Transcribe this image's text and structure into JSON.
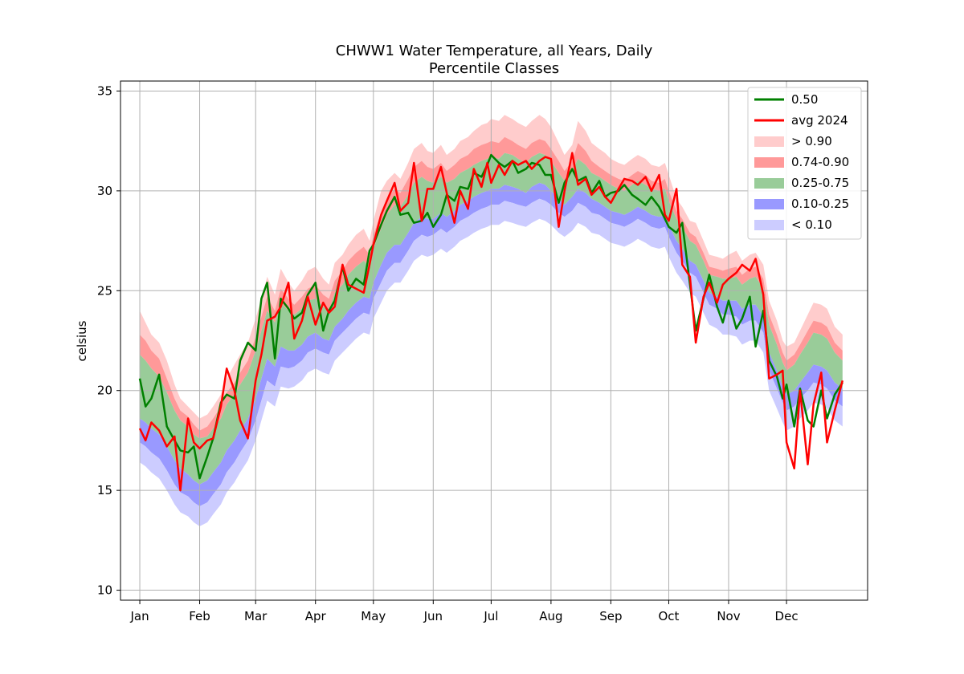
{
  "chart_data": {
    "type": "area",
    "title": "CHWW1 Water Temperature, all Years, Daily",
    "subtitle": "Percentile Classes",
    "xlabel": "",
    "ylabel": "celsius",
    "ylim": [
      9.5,
      35.5
    ],
    "xlim": [
      -10,
      377
    ],
    "grid": true,
    "legend_position": "top-right",
    "x_ticks": [
      {
        "day": 0,
        "label": "Jan"
      },
      {
        "day": 31,
        "label": "Feb"
      },
      {
        "day": 60,
        "label": "Mar"
      },
      {
        "day": 91,
        "label": "Apr"
      },
      {
        "day": 121,
        "label": "May"
      },
      {
        "day": 152,
        "label": "Jun"
      },
      {
        "day": 182,
        "label": "Jul"
      },
      {
        "day": 213,
        "label": "Aug"
      },
      {
        "day": 244,
        "label": "Sep"
      },
      {
        "day": 274,
        "label": "Oct"
      },
      {
        "day": 305,
        "label": "Nov"
      },
      {
        "day": 335,
        "label": "Dec"
      }
    ],
    "y_ticks": [
      10,
      15,
      20,
      25,
      30,
      35
    ],
    "legend": [
      {
        "label": "0.50",
        "kind": "line",
        "color": "#008000"
      },
      {
        "label": "avg 2024",
        "kind": "line",
        "color": "#ff0000"
      },
      {
        "label": "> 0.90",
        "kind": "band",
        "color": "#ffcccc"
      },
      {
        "label": "0.74-0.90",
        "kind": "band",
        "color": "#ff9999"
      },
      {
        "label": "0.25-0.75",
        "kind": "band",
        "color": "#99cc99"
      },
      {
        "label": "0.10-0.25",
        "kind": "band",
        "color": "#9999ff"
      },
      {
        "label": "< 0.10",
        "kind": "band",
        "color": "#ccccff"
      }
    ],
    "x": [
      0,
      3,
      6,
      10,
      14,
      18,
      21,
      25,
      28,
      31,
      35,
      38,
      42,
      45,
      49,
      52,
      56,
      60,
      63,
      66,
      70,
      73,
      77,
      80,
      84,
      87,
      91,
      95,
      98,
      101,
      105,
      108,
      112,
      116,
      119,
      121,
      125,
      128,
      132,
      135,
      139,
      142,
      146,
      149,
      152,
      156,
      159,
      163,
      166,
      170,
      173,
      177,
      180,
      182,
      186,
      189,
      193,
      196,
      200,
      203,
      207,
      210,
      213,
      217,
      220,
      224,
      227,
      231,
      234,
      238,
      241,
      244,
      248,
      251,
      255,
      258,
      262,
      265,
      269,
      272,
      274,
      278,
      281,
      285,
      288,
      292,
      295,
      299,
      302,
      305,
      309,
      312,
      316,
      319,
      323,
      326,
      330,
      333,
      335,
      339,
      342,
      346,
      349,
      353,
      356,
      360,
      364
    ],
    "series": [
      {
        "name": "> 0.90",
        "values": [
          24.0,
          23.4,
          22.8,
          22.4,
          21.5,
          20.3,
          19.6,
          19.2,
          18.9,
          18.6,
          18.8,
          19.2,
          19.8,
          20.6,
          21.3,
          21.8,
          22.4,
          23.6,
          24.6,
          25.7,
          24.8,
          26.1,
          25.4,
          25.0,
          25.5,
          26.0,
          26.2,
          25.6,
          25.3,
          26.4,
          26.8,
          27.3,
          27.8,
          28.1,
          27.5,
          28.5,
          30.0,
          30.5,
          30.9,
          30.6,
          31.4,
          32.1,
          32.4,
          32.0,
          31.9,
          32.3,
          31.8,
          32.1,
          32.5,
          32.7,
          33.0,
          33.3,
          33.4,
          33.6,
          33.5,
          33.8,
          33.6,
          33.4,
          33.2,
          33.5,
          33.8,
          33.6,
          33.2,
          32.4,
          31.8,
          32.3,
          33.5,
          33.0,
          32.4,
          32.1,
          31.9,
          31.6,
          31.4,
          31.3,
          31.6,
          31.8,
          31.6,
          31.3,
          31.2,
          31.4,
          30.8,
          29.6,
          29.2,
          28.5,
          28.4,
          27.5,
          26.8,
          26.7,
          26.6,
          26.8,
          27.0,
          26.5,
          26.8,
          26.9,
          26.3,
          24.5,
          23.5,
          22.5,
          22.2,
          22.4,
          23.0,
          23.8,
          24.4,
          24.3,
          24.1,
          23.2,
          22.8
        ]
      },
      {
        "name": "0.74-0.90",
        "values": [
          22.8,
          22.5,
          22.0,
          21.6,
          20.6,
          19.6,
          19.0,
          18.7,
          18.3,
          18.0,
          18.2,
          18.6,
          19.2,
          19.9,
          20.4,
          20.9,
          21.5,
          22.7,
          23.7,
          24.7,
          24.0,
          25.1,
          24.6,
          24.3,
          24.7,
          25.1,
          25.3,
          24.8,
          24.6,
          25.5,
          26.0,
          26.5,
          26.9,
          27.2,
          26.8,
          27.8,
          28.9,
          29.6,
          30.1,
          29.9,
          30.6,
          31.2,
          31.5,
          31.2,
          31.1,
          31.4,
          31.0,
          31.3,
          31.6,
          31.8,
          32.1,
          32.3,
          32.4,
          32.5,
          32.4,
          32.7,
          32.5,
          32.3,
          32.1,
          32.4,
          32.6,
          32.5,
          32.1,
          31.5,
          31.0,
          31.5,
          32.4,
          32.0,
          31.5,
          31.2,
          31.0,
          30.8,
          30.6,
          30.5,
          30.8,
          31.0,
          30.8,
          30.5,
          30.4,
          30.6,
          30.0,
          29.0,
          28.6,
          27.9,
          27.7,
          26.9,
          26.2,
          26.1,
          26.0,
          26.1,
          26.2,
          25.8,
          26.1,
          26.2,
          25.6,
          23.8,
          22.8,
          21.9,
          21.5,
          21.8,
          22.3,
          23.0,
          23.5,
          23.4,
          23.2,
          22.4,
          22.0
        ]
      },
      {
        "name": "0.75",
        "values": [
          21.8,
          21.5,
          21.1,
          20.7,
          19.9,
          19.0,
          18.5,
          18.2,
          17.8,
          17.6,
          17.7,
          18.1,
          18.6,
          19.3,
          19.8,
          20.3,
          20.9,
          22.0,
          23.0,
          24.0,
          23.4,
          24.4,
          24.0,
          23.8,
          24.1,
          24.5,
          24.6,
          24.2,
          24.0,
          24.9,
          25.3,
          25.8,
          26.2,
          26.5,
          26.2,
          27.1,
          28.1,
          28.8,
          29.3,
          29.2,
          29.8,
          30.4,
          30.7,
          30.5,
          30.4,
          30.7,
          30.4,
          30.6,
          30.9,
          31.1,
          31.3,
          31.5,
          31.6,
          31.7,
          31.6,
          31.9,
          31.8,
          31.6,
          31.4,
          31.7,
          31.9,
          31.8,
          31.5,
          30.9,
          30.5,
          31.0,
          31.6,
          31.3,
          30.9,
          30.7,
          30.5,
          30.3,
          30.1,
          30.0,
          30.3,
          30.5,
          30.3,
          30.1,
          30.0,
          30.1,
          29.5,
          28.6,
          28.2,
          27.5,
          27.3,
          26.5,
          25.8,
          25.7,
          25.6,
          25.6,
          25.7,
          25.3,
          25.6,
          25.7,
          25.1,
          23.3,
          22.3,
          21.4,
          21.0,
          21.3,
          21.8,
          22.4,
          22.9,
          22.8,
          22.6,
          21.9,
          21.5
        ]
      },
      {
        "name": "0.25",
        "values": [
          18.6,
          18.4,
          18.1,
          17.8,
          17.2,
          16.5,
          16.1,
          15.8,
          15.5,
          15.3,
          15.5,
          15.9,
          16.4,
          17.0,
          17.5,
          18.0,
          18.6,
          19.6,
          20.6,
          21.6,
          21.2,
          22.2,
          22.0,
          22.0,
          22.3,
          22.7,
          22.9,
          22.6,
          22.5,
          23.2,
          23.6,
          24.0,
          24.4,
          24.7,
          24.6,
          25.4,
          26.3,
          26.9,
          27.3,
          27.3,
          27.9,
          28.4,
          28.7,
          28.6,
          28.6,
          28.9,
          28.7,
          29.0,
          29.3,
          29.5,
          29.7,
          29.9,
          30.0,
          30.1,
          30.1,
          30.3,
          30.2,
          30.1,
          29.9,
          30.2,
          30.4,
          30.3,
          30.0,
          29.6,
          29.3,
          29.7,
          30.1,
          29.9,
          29.6,
          29.4,
          29.2,
          29.0,
          28.9,
          28.8,
          29.0,
          29.2,
          29.0,
          28.8,
          28.7,
          28.8,
          28.3,
          27.5,
          27.1,
          26.5,
          26.3,
          25.5,
          24.9,
          24.7,
          24.5,
          24.5,
          24.5,
          24.1,
          24.3,
          24.3,
          23.7,
          21.9,
          21.0,
          20.2,
          19.8,
          20.0,
          20.4,
          20.9,
          21.3,
          21.2,
          21.0,
          20.4,
          20.1
        ]
      },
      {
        "name": "0.10",
        "values": [
          17.4,
          17.2,
          16.9,
          16.6,
          16.0,
          15.3,
          14.9,
          14.7,
          14.4,
          14.2,
          14.4,
          14.8,
          15.3,
          15.9,
          16.4,
          16.9,
          17.5,
          18.5,
          19.5,
          20.5,
          20.2,
          21.2,
          21.1,
          21.2,
          21.5,
          21.9,
          22.1,
          21.9,
          21.8,
          22.5,
          22.9,
          23.2,
          23.6,
          23.9,
          23.8,
          24.6,
          25.4,
          26.0,
          26.4,
          26.4,
          27.0,
          27.5,
          27.8,
          27.7,
          27.8,
          28.1,
          27.9,
          28.2,
          28.5,
          28.7,
          28.9,
          29.1,
          29.2,
          29.3,
          29.3,
          29.5,
          29.4,
          29.3,
          29.2,
          29.4,
          29.6,
          29.5,
          29.3,
          28.9,
          28.7,
          29.0,
          29.4,
          29.2,
          28.9,
          28.8,
          28.6,
          28.4,
          28.3,
          28.2,
          28.4,
          28.6,
          28.4,
          28.2,
          28.1,
          28.2,
          27.7,
          26.9,
          26.5,
          25.9,
          25.7,
          24.9,
          24.3,
          24.1,
          23.8,
          23.8,
          23.7,
          23.3,
          23.5,
          23.5,
          22.9,
          21.0,
          20.1,
          19.4,
          19.0,
          19.2,
          19.6,
          20.0,
          20.4,
          20.3,
          20.1,
          19.5,
          19.2
        ]
      },
      {
        "name": "0.50",
        "values": [
          20.6,
          19.2,
          19.6,
          20.8,
          18.2,
          17.5,
          17.0,
          16.9,
          17.2,
          15.6,
          16.7,
          17.6,
          19.4,
          19.8,
          19.6,
          21.5,
          22.4,
          22.0,
          24.6,
          25.4,
          21.6,
          24.6,
          24.1,
          23.6,
          23.9,
          24.8,
          25.4,
          23.0,
          24.0,
          24.5,
          26.2,
          25.0,
          25.6,
          25.3,
          27.0,
          27.3,
          28.3,
          29.0,
          29.7,
          28.8,
          28.9,
          28.4,
          28.5,
          28.9,
          28.2,
          28.8,
          29.8,
          29.5,
          30.2,
          30.1,
          30.9,
          30.7,
          31.3,
          31.8,
          31.4,
          31.2,
          31.5,
          30.9,
          31.1,
          31.4,
          31.3,
          30.8,
          30.8,
          29.4,
          30.4,
          31.1,
          30.5,
          30.7,
          29.9,
          30.5,
          29.7,
          29.9,
          30.0,
          30.3,
          29.8,
          29.6,
          29.3,
          29.7,
          29.2,
          28.6,
          28.2,
          27.9,
          28.4,
          25.3,
          23.0,
          24.6,
          25.8,
          24.2,
          23.4,
          24.5,
          23.1,
          23.6,
          24.7,
          22.2,
          24.0,
          21.5,
          20.7,
          19.6,
          20.3,
          18.2,
          20.1,
          18.5,
          18.2,
          20.0,
          18.6,
          19.8,
          20.4
        ]
      },
      {
        "name": "avg 2024",
        "values": [
          18.1,
          17.5,
          18.4,
          18.0,
          17.2,
          17.7,
          15.0,
          18.6,
          17.4,
          17.1,
          17.5,
          17.6,
          19.2,
          21.1,
          20.0,
          18.5,
          17.6,
          20.5,
          21.8,
          23.5,
          23.7,
          24.2,
          25.4,
          22.6,
          23.5,
          24.7,
          23.3,
          24.4,
          23.9,
          24.2,
          26.3,
          25.3,
          25.1,
          24.9,
          26.3,
          27.3,
          28.8,
          29.5,
          30.4,
          29.0,
          29.4,
          31.4,
          28.5,
          30.1,
          30.1,
          31.2,
          29.9,
          28.4,
          30.0,
          29.1,
          31.1,
          30.2,
          31.4,
          30.4,
          31.3,
          30.8,
          31.5,
          31.3,
          31.5,
          31.1,
          31.5,
          31.7,
          31.6,
          28.2,
          30.0,
          31.9,
          30.3,
          30.6,
          29.8,
          30.2,
          29.7,
          29.4,
          30.1,
          30.6,
          30.5,
          30.3,
          30.7,
          30.0,
          30.8,
          28.8,
          28.5,
          30.1,
          26.3,
          25.7,
          22.4,
          24.7,
          25.4,
          24.4,
          25.3,
          25.6,
          25.9,
          26.3,
          26.0,
          26.6,
          24.8,
          20.6,
          20.8,
          21.0,
          17.4,
          16.1,
          20.0,
          16.3,
          19.3,
          20.9,
          17.4,
          19.0,
          20.5
        ]
      }
    ]
  }
}
